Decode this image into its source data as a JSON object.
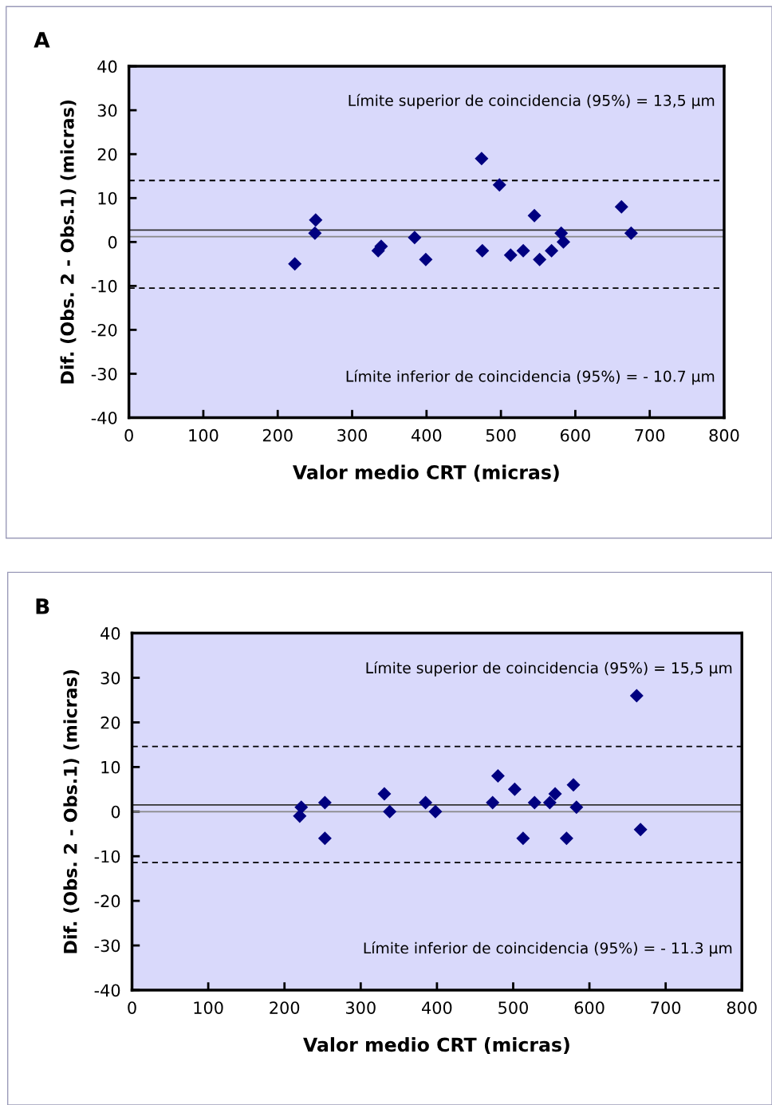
{
  "chart_data": [
    {
      "type": "scatter",
      "title": "A",
      "xlabel": "Valor medio CRT (micras)",
      "ylabel": "Dif. (Obs. 2 - Obs.1) (micras)",
      "annotations": [
        "Límite superior de coincidencia (95%) = 13,5 µm",
        "Límite inferior de coincidencia (95%) = - 10.7 µm"
      ],
      "series": [
        {
          "color": "#000080",
          "x": [
            223,
            251,
            250,
            335,
            339,
            384,
            399,
            474,
            498,
            475,
            513,
            530,
            545,
            552,
            568,
            581,
            584,
            662,
            675
          ],
          "values": [
            -5,
            5,
            2,
            -2,
            -1,
            1,
            -4,
            19,
            13,
            -2,
            -3,
            -2,
            6,
            -4,
            -2,
            2,
            0,
            8,
            2
          ]
        }
      ],
      "marker": "diamond",
      "xlim": [
        0,
        800
      ],
      "xticks": [
        0,
        100,
        200,
        300,
        400,
        500,
        600,
        700,
        800
      ],
      "ylim": [
        -40,
        40
      ],
      "yticks": [
        -40,
        -30,
        -20,
        -10,
        0,
        10,
        20,
        30,
        40
      ],
      "ref_lines": [
        {
          "axis": "y",
          "value": 14,
          "color": "#000000",
          "line_style": "dashed"
        },
        {
          "axis": "y",
          "value": -10.5,
          "color": "#000000",
          "line_style": "dashed"
        },
        {
          "axis": "y",
          "value": 2.7,
          "color": "#333333",
          "line_style": "solid"
        },
        {
          "axis": "y",
          "value": 1.2,
          "color": "#888888",
          "line_style": "solid"
        }
      ],
      "grid": false,
      "legend": false
    },
    {
      "type": "scatter",
      "title": "B",
      "xlabel": "Valor medio CRT (micras)",
      "ylabel": "Dif. (Obs. 2 - Obs.1) (micras)",
      "annotations": [
        "Límite superior de coincidencia (95%) = 15,5 µm",
        "Límite inferior de coincidencia (95%) = - 11.3 µm"
      ],
      "series": [
        {
          "color": "#000080",
          "x": [
            222,
            220,
            253,
            253,
            331,
            338,
            385,
            398,
            473,
            480,
            502,
            513,
            528,
            548,
            555,
            570,
            579,
            583,
            662,
            667
          ],
          "values": [
            1,
            -1,
            2,
            -6,
            4,
            0,
            2,
            0,
            2,
            8,
            5,
            -6,
            2,
            2,
            4,
            -6,
            6,
            1,
            26,
            -4
          ]
        }
      ],
      "marker": "diamond",
      "xlim": [
        0,
        800
      ],
      "xticks": [
        0,
        100,
        200,
        300,
        400,
        500,
        600,
        700,
        800
      ],
      "ylim": [
        -40,
        40
      ],
      "yticks": [
        -40,
        -30,
        -20,
        -10,
        0,
        10,
        20,
        30,
        40
      ],
      "ref_lines": [
        {
          "axis": "y",
          "value": 14.6,
          "color": "#000000",
          "line_style": "dashed"
        },
        {
          "axis": "y",
          "value": -11.4,
          "color": "#000000",
          "line_style": "dashed"
        },
        {
          "axis": "y",
          "value": 1.5,
          "color": "#333333",
          "line_style": "solid"
        },
        {
          "axis": "y",
          "value": 0,
          "color": "#888888",
          "line_style": "solid"
        }
      ],
      "grid": false,
      "legend": false
    }
  ]
}
